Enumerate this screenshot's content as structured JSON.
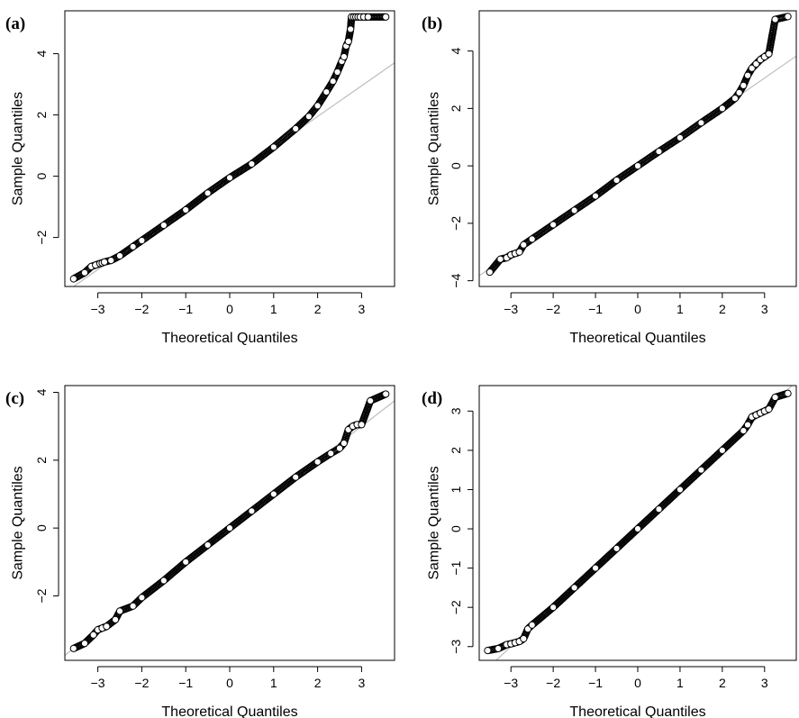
{
  "chart_data": [
    {
      "type": "scatter",
      "panel_label": "(a)",
      "xlabel": "Theoretical Quantiles",
      "ylabel": "Sample Quantiles",
      "xlim": [
        -3.75,
        3.75
      ],
      "ylim": [
        -3.6,
        5.4
      ],
      "x_ticks": [
        -3,
        -2,
        -1,
        0,
        1,
        2,
        3
      ],
      "y_ticks": [
        -2,
        0,
        2,
        4
      ],
      "reference_line": {
        "intercept": -0.05,
        "slope": 1.0
      },
      "series": [
        {
          "points": [
            [
              -3.55,
              -3.35
            ],
            [
              -3.3,
              -3.15
            ],
            [
              -3.15,
              -2.95
            ],
            [
              -3.05,
              -2.9
            ],
            [
              -2.95,
              -2.85
            ],
            [
              -2.9,
              -2.83
            ],
            [
              -2.85,
              -2.8
            ],
            [
              -2.7,
              -2.75
            ],
            [
              -2.5,
              -2.6
            ],
            [
              -2.2,
              -2.3
            ],
            [
              -2.0,
              -2.1
            ],
            [
              -1.5,
              -1.6
            ],
            [
              -1.0,
              -1.1
            ],
            [
              -0.5,
              -0.55
            ],
            [
              0.0,
              -0.05
            ],
            [
              0.5,
              0.4
            ],
            [
              1.0,
              0.95
            ],
            [
              1.5,
              1.55
            ],
            [
              1.8,
              1.95
            ],
            [
              2.0,
              2.3
            ],
            [
              2.2,
              2.75
            ],
            [
              2.35,
              3.1
            ],
            [
              2.45,
              3.4
            ],
            [
              2.55,
              3.75
            ],
            [
              2.6,
              3.9
            ],
            [
              2.65,
              4.25
            ],
            [
              2.7,
              4.4
            ],
            [
              2.75,
              4.8
            ],
            [
              2.77,
              5.2
            ],
            [
              2.82,
              5.2
            ],
            [
              2.87,
              5.2
            ],
            [
              2.92,
              5.2
            ],
            [
              2.97,
              5.2
            ],
            [
              3.05,
              5.2
            ],
            [
              3.15,
              5.2
            ],
            [
              3.55,
              5.2
            ]
          ]
        }
      ]
    },
    {
      "type": "scatter",
      "panel_label": "(b)",
      "xlabel": "Theoretical Quantiles",
      "ylabel": "Sample Quantiles",
      "xlim": [
        -3.75,
        3.75
      ],
      "ylim": [
        -4.2,
        5.4
      ],
      "x_ticks": [
        -3,
        -2,
        -1,
        0,
        1,
        2,
        3
      ],
      "y_ticks": [
        -4,
        -2,
        0,
        2,
        4
      ],
      "reference_line": {
        "intercept": 0.0,
        "slope": 1.02
      },
      "series": [
        {
          "points": [
            [
              -3.5,
              -3.7
            ],
            [
              -3.25,
              -3.25
            ],
            [
              -3.1,
              -3.2
            ],
            [
              -3.0,
              -3.1
            ],
            [
              -2.9,
              -3.05
            ],
            [
              -2.8,
              -3.0
            ],
            [
              -2.7,
              -2.75
            ],
            [
              -2.5,
              -2.55
            ],
            [
              -2.0,
              -2.05
            ],
            [
              -1.5,
              -1.55
            ],
            [
              -1.0,
              -1.05
            ],
            [
              -0.5,
              -0.5
            ],
            [
              0.0,
              0.0
            ],
            [
              0.5,
              0.5
            ],
            [
              1.0,
              0.98
            ],
            [
              1.5,
              1.5
            ],
            [
              2.0,
              2.0
            ],
            [
              2.3,
              2.35
            ],
            [
              2.4,
              2.55
            ],
            [
              2.5,
              2.8
            ],
            [
              2.6,
              3.15
            ],
            [
              2.7,
              3.4
            ],
            [
              2.8,
              3.55
            ],
            [
              2.9,
              3.7
            ],
            [
              3.0,
              3.8
            ],
            [
              3.1,
              3.9
            ],
            [
              3.25,
              5.1
            ],
            [
              3.55,
              5.2
            ]
          ]
        }
      ]
    },
    {
      "type": "scatter",
      "panel_label": "(c)",
      "xlabel": "Theoretical Quantiles",
      "ylabel": "Sample Quantiles",
      "xlim": [
        -3.75,
        3.75
      ],
      "ylim": [
        -3.9,
        4.2
      ],
      "x_ticks": [
        -3,
        -2,
        -1,
        0,
        1,
        2,
        3
      ],
      "y_ticks": [
        -2,
        0,
        2,
        4
      ],
      "reference_line": {
        "intercept": 0.0,
        "slope": 1.0
      },
      "series": [
        {
          "points": [
            [
              -3.55,
              -3.55
            ],
            [
              -3.3,
              -3.4
            ],
            [
              -3.1,
              -3.15
            ],
            [
              -3.0,
              -3.0
            ],
            [
              -2.9,
              -2.95
            ],
            [
              -2.8,
              -2.9
            ],
            [
              -2.6,
              -2.7
            ],
            [
              -2.5,
              -2.45
            ],
            [
              -2.2,
              -2.3
            ],
            [
              -2.0,
              -2.05
            ],
            [
              -1.5,
              -1.55
            ],
            [
              -1.0,
              -1.0
            ],
            [
              -0.5,
              -0.5
            ],
            [
              0.0,
              0.0
            ],
            [
              0.5,
              0.5
            ],
            [
              1.0,
              1.0
            ],
            [
              1.5,
              1.5
            ],
            [
              2.0,
              1.95
            ],
            [
              2.3,
              2.2
            ],
            [
              2.5,
              2.35
            ],
            [
              2.6,
              2.5
            ],
            [
              2.7,
              2.9
            ],
            [
              2.8,
              3.0
            ],
            [
              2.9,
              3.05
            ],
            [
              3.0,
              3.05
            ],
            [
              3.2,
              3.75
            ],
            [
              3.55,
              3.95
            ]
          ]
        }
      ]
    },
    {
      "type": "scatter",
      "panel_label": "(d)",
      "xlabel": "Theoretical Quantiles",
      "ylabel": "Sample Quantiles",
      "xlim": [
        -3.75,
        3.75
      ],
      "ylim": [
        -3.35,
        3.65
      ],
      "x_ticks": [
        -3,
        -2,
        -1,
        0,
        1,
        2,
        3
      ],
      "y_ticks": [
        -3,
        -2,
        -1,
        0,
        1,
        2,
        3
      ],
      "reference_line": {
        "intercept": 0.0,
        "slope": 1.0
      },
      "series": [
        {
          "points": [
            [
              -3.55,
              -3.1
            ],
            [
              -3.3,
              -3.05
            ],
            [
              -3.1,
              -2.95
            ],
            [
              -3.0,
              -2.93
            ],
            [
              -2.9,
              -2.9
            ],
            [
              -2.8,
              -2.87
            ],
            [
              -2.7,
              -2.8
            ],
            [
              -2.6,
              -2.55
            ],
            [
              -2.5,
              -2.45
            ],
            [
              -2.0,
              -2.0
            ],
            [
              -1.5,
              -1.5
            ],
            [
              -1.0,
              -1.0
            ],
            [
              -0.5,
              -0.5
            ],
            [
              0.0,
              0.0
            ],
            [
              0.5,
              0.5
            ],
            [
              1.0,
              1.0
            ],
            [
              1.5,
              1.5
            ],
            [
              2.0,
              2.0
            ],
            [
              2.5,
              2.5
            ],
            [
              2.6,
              2.65
            ],
            [
              2.7,
              2.85
            ],
            [
              2.8,
              2.9
            ],
            [
              2.9,
              2.95
            ],
            [
              3.0,
              3.0
            ],
            [
              3.1,
              3.05
            ],
            [
              3.25,
              3.35
            ],
            [
              3.55,
              3.45
            ]
          ]
        }
      ]
    }
  ]
}
